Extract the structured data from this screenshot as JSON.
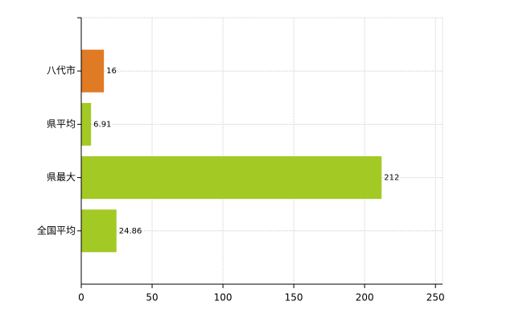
{
  "chart_data": {
    "type": "barh",
    "categories": [
      "八代市",
      "県平均",
      "県最大",
      "全国平均"
    ],
    "values": [
      16,
      6.91,
      212,
      24.86
    ],
    "colors": [
      "#e07a24",
      "#a3c925",
      "#a3c925",
      "#a3c925"
    ],
    "xlim": [
      0,
      255
    ],
    "xticks": [
      0,
      50,
      100,
      150,
      200,
      250
    ],
    "grid": true
  }
}
